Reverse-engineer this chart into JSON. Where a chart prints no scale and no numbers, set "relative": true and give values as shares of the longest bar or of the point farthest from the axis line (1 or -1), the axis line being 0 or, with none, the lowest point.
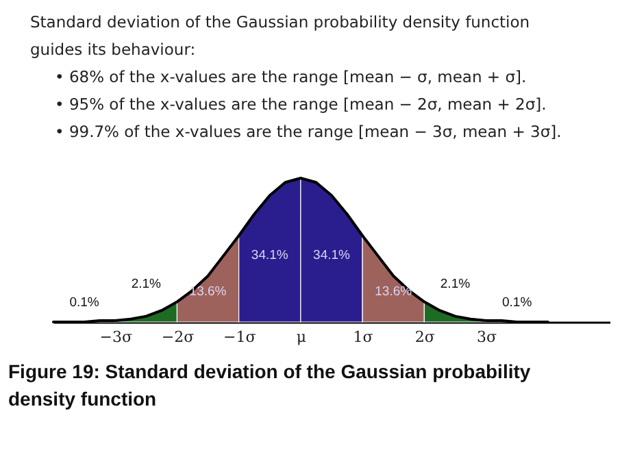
{
  "chart_data": {
    "type": "area",
    "relative": true,
    "title": "Standard deviation of the Gaussian probability density function guides its behaviour:",
    "annotations": [
      "• 68% of the x-values are the range [mean − σ, mean + σ].",
      "• 95% of the x-values are the range [mean − 2σ, mean + 2σ].",
      "• 99.7% of the x-values are the range [mean − 3σ, mean + 3σ].",
      "Figure 19: Standard deviation of the Gaussian probability density function"
    ],
    "xlim": [
      -4,
      5
    ],
    "xticks": [
      {
        "value": -3,
        "label": "−3σ"
      },
      {
        "value": -2,
        "label": "−2σ"
      },
      {
        "value": -1,
        "label": "−1σ"
      },
      {
        "value": 0,
        "label": "μ"
      },
      {
        "value": 1,
        "label": "1σ"
      },
      {
        "value": 2,
        "label": "2σ"
      },
      {
        "value": 3,
        "label": "3σ"
      }
    ],
    "series": [
      {
        "name": "0.1%",
        "color": "#ffffff",
        "x": [
          -4,
          -3.75,
          -3.5,
          -3.25,
          -3
        ],
        "values": [
          0,
          0,
          0,
          0.01,
          0.01
        ]
      },
      {
        "name": "2.1%",
        "color": "#1e6b24",
        "x": [
          -3,
          -2.75,
          -2.5,
          -2.25,
          -2
        ],
        "values": [
          0.01,
          0.02,
          0.04,
          0.08,
          0.14
        ]
      },
      {
        "name": "13.6%",
        "color": "#9e625c",
        "x": [
          -2,
          -1.75,
          -1.5,
          -1.25,
          -1
        ],
        "values": [
          0.14,
          0.22,
          0.32,
          0.46,
          0.6
        ]
      },
      {
        "name": "34.1%",
        "color": "#2a1e8e",
        "x": [
          -1,
          -0.75,
          -0.5,
          -0.25,
          0
        ],
        "values": [
          0.6,
          0.75,
          0.88,
          0.97,
          1
        ]
      },
      {
        "name": "34.1%",
        "color": "#2a1e8e",
        "x": [
          0,
          0.25,
          0.5,
          0.75,
          1
        ],
        "values": [
          1,
          0.97,
          0.88,
          0.75,
          0.6
        ]
      },
      {
        "name": "13.6%",
        "color": "#9e625c",
        "x": [
          1,
          1.25,
          1.5,
          1.75,
          2
        ],
        "values": [
          0.6,
          0.46,
          0.32,
          0.22,
          0.14
        ]
      },
      {
        "name": "2.1%",
        "color": "#1e6b24",
        "x": [
          2,
          2.25,
          2.5,
          2.75,
          3
        ],
        "values": [
          0.14,
          0.08,
          0.04,
          0.02,
          0.01
        ]
      },
      {
        "name": "0.1%",
        "color": "#ffffff",
        "x": [
          3,
          3.25,
          3.5,
          3.75,
          4
        ],
        "values": [
          0.01,
          0.01,
          0,
          0,
          0
        ]
      },
      {
        "type": "line",
        "color": "#000000",
        "x": [
          -4,
          -3.75,
          -3.5,
          -3.25,
          -3,
          -2.75,
          -2.5,
          -2.25,
          -2,
          -1.75,
          -1.5,
          -1.25,
          -1,
          -0.75,
          -0.5,
          -0.25,
          0,
          0.25,
          0.5,
          0.75,
          1,
          1.25,
          1.5,
          1.75,
          2,
          2.25,
          2.5,
          2.75,
          3,
          3.25,
          3.5,
          3.75,
          4
        ],
        "values": [
          0,
          0,
          0,
          0.01,
          0.01,
          0.02,
          0.04,
          0.08,
          0.14,
          0.22,
          0.32,
          0.46,
          0.6,
          0.75,
          0.88,
          0.97,
          1,
          0.97,
          0.88,
          0.75,
          0.6,
          0.46,
          0.32,
          0.22,
          0.14,
          0.08,
          0.04,
          0.02,
          0.01,
          0.01,
          0,
          0,
          0
        ]
      }
    ]
  }
}
